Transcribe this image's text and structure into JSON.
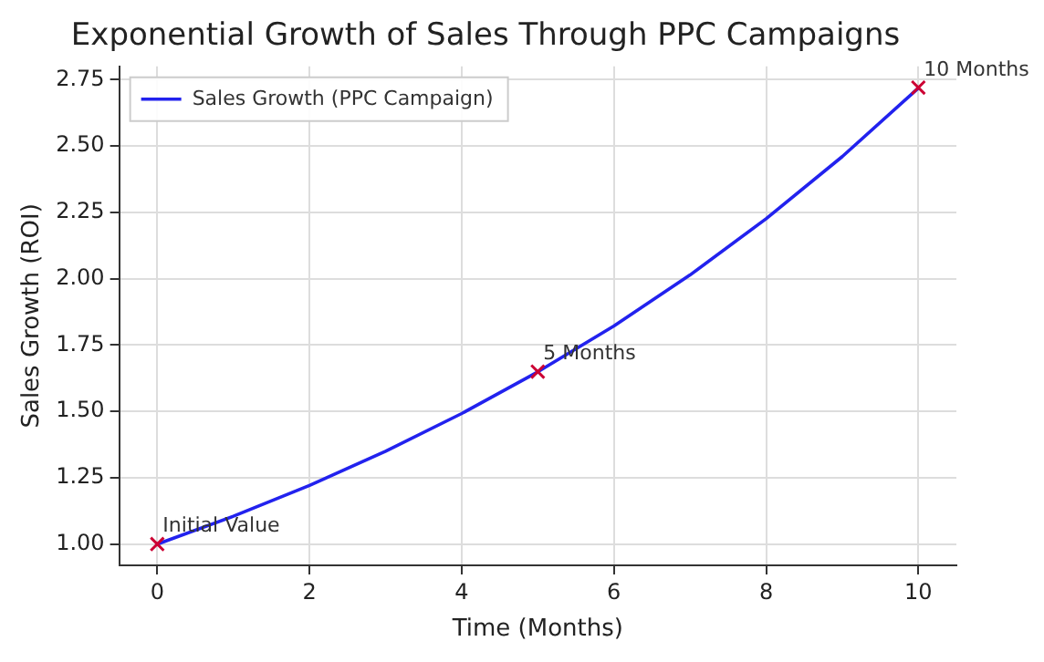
{
  "chart_data": {
    "type": "line",
    "title": "Exponential Growth of Sales Through PPC Campaigns",
    "xlabel": "Time (Months)",
    "ylabel": "Sales Growth (ROI)",
    "series": [
      {
        "name": "Sales Growth (PPC Campaign)",
        "color": "#2222ee",
        "x": [
          0,
          1,
          2,
          3,
          4,
          5,
          6,
          7,
          8,
          9,
          10
        ],
        "values": [
          1.0,
          1.105,
          1.221,
          1.35,
          1.492,
          1.649,
          1.822,
          2.014,
          2.226,
          2.46,
          2.718
        ],
        "marker": "none",
        "line_style": "solid"
      },
      {
        "type": "scatter",
        "color": "#cc0033",
        "x": [
          0,
          5,
          10
        ],
        "values": [
          1.0,
          1.65,
          2.72
        ],
        "marker": "cross"
      }
    ],
    "annotations": [
      {
        "text": "Initial Value",
        "x": 0,
        "y": 1.0
      },
      {
        "text": "5 Months",
        "x": 5,
        "y": 1.65
      },
      {
        "text": "10 Months",
        "x": 10,
        "y": 2.72
      }
    ],
    "xlim": [
      -0.5,
      10.5
    ],
    "xticks": [
      0,
      2,
      4,
      6,
      8,
      10
    ],
    "ylim": [
      0.92,
      2.8
    ],
    "yticks": [
      {
        "value": 1,
        "label": "1.00"
      },
      1.25,
      {
        "value": 1.5,
        "label": "1.50"
      },
      1.75,
      {
        "value": 2,
        "label": "2.00"
      },
      2.25,
      {
        "value": 2.5,
        "label": "2.50"
      },
      2.75
    ],
    "grid": true,
    "legend": "top left"
  }
}
